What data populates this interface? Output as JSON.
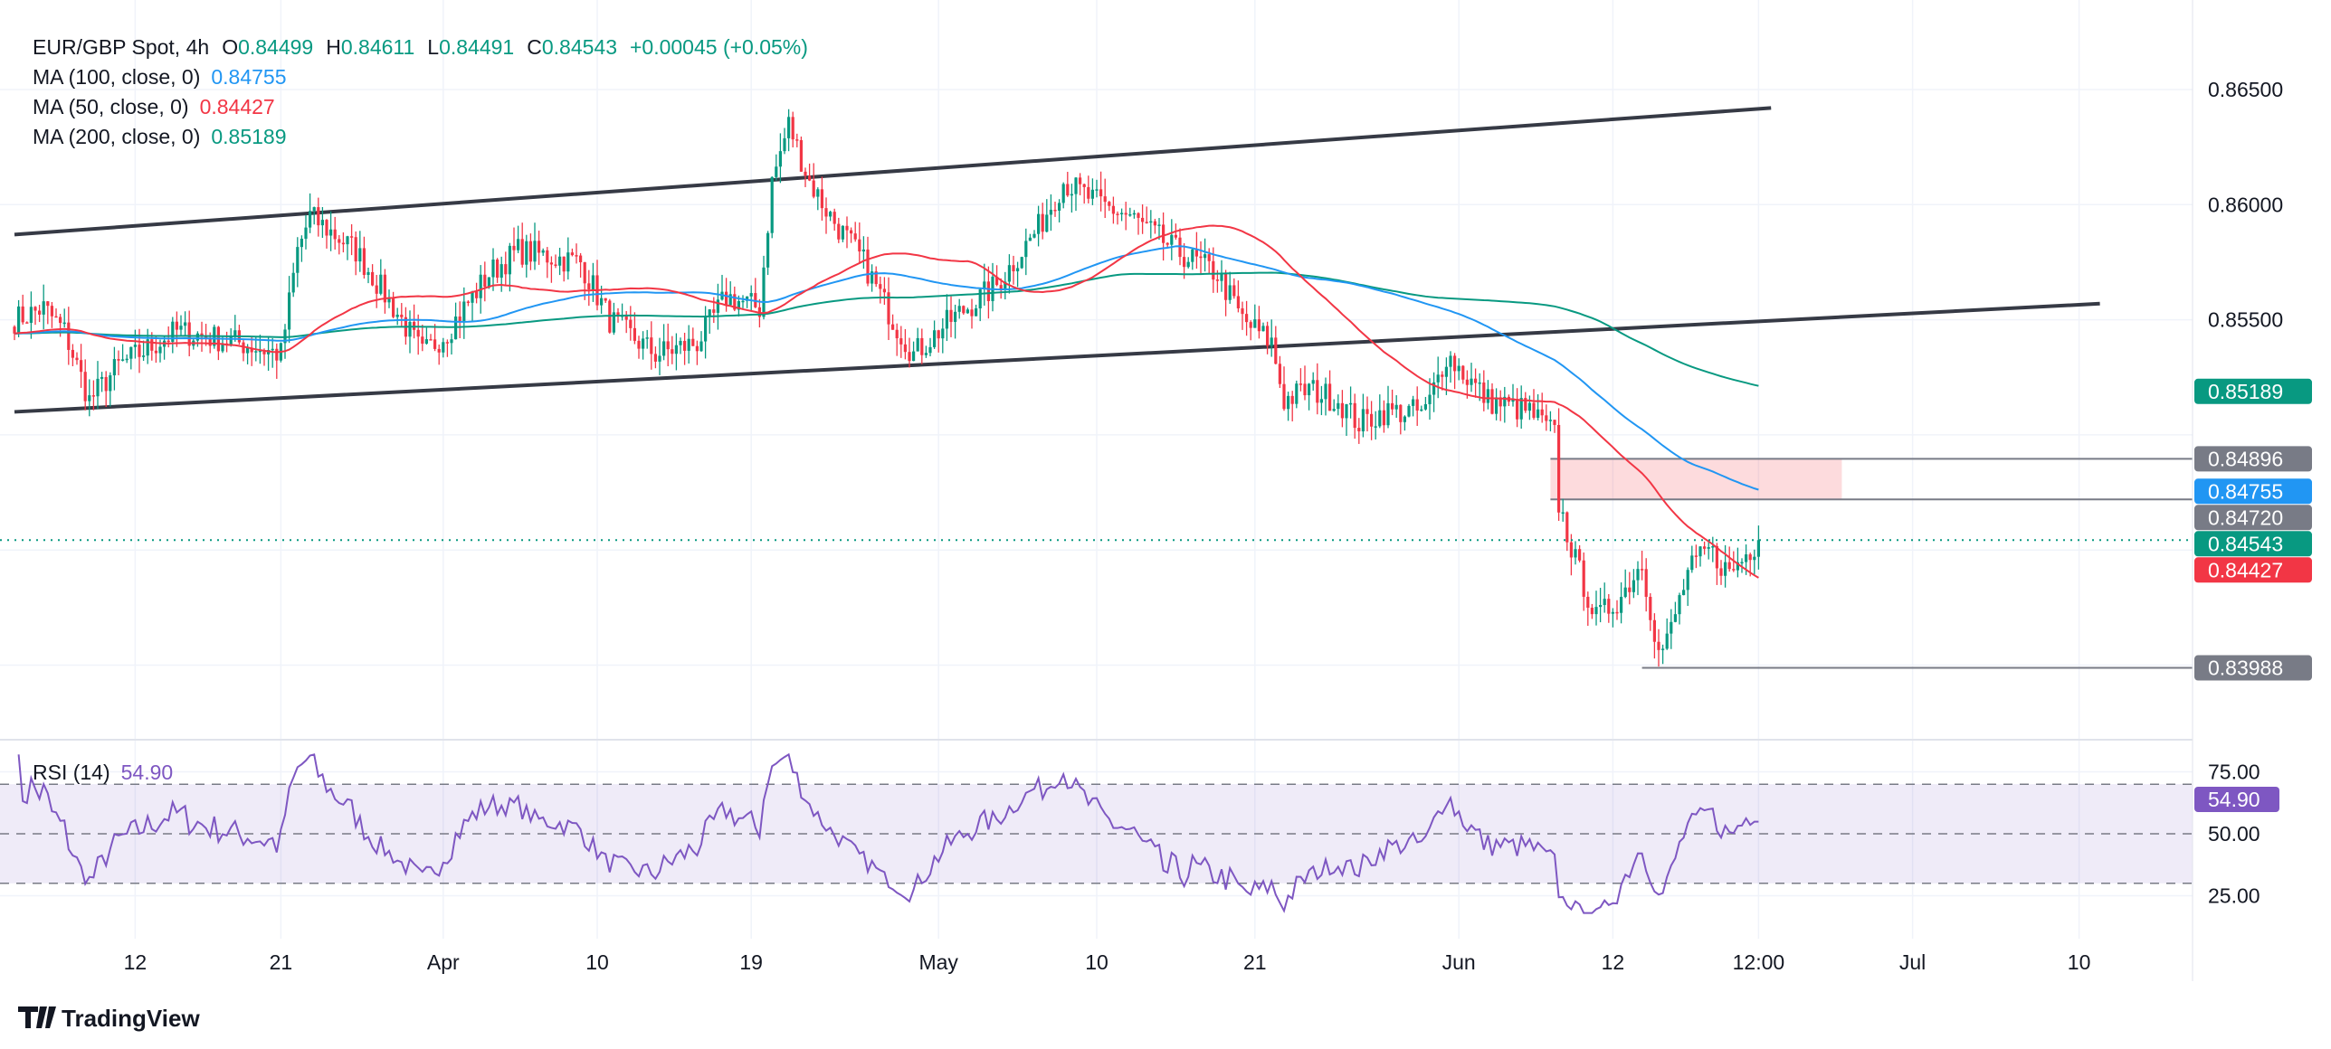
{
  "legend": {
    "symbol": "EUR/GBP Spot, 4h",
    "o_label": "O",
    "o": "0.84499",
    "h_label": "H",
    "h": "0.84611",
    "l_label": "L",
    "l": "0.84491",
    "c_label": "C",
    "c": "0.84543",
    "change": "+0.00045 (+0.05%)",
    "ma100_label": "MA (100, close, 0)",
    "ma100": "0.84755",
    "ma50_label": "MA (50, close, 0)",
    "ma50": "0.84427",
    "ma200_label": "MA (200, close, 0)",
    "ma200": "0.85189",
    "rsi_label": "RSI (14)",
    "rsi": "54.90"
  },
  "colors": {
    "up": "#089981",
    "down": "#f23645",
    "ma50": "#f23645",
    "ma100": "#2196f3",
    "ma200": "#089981",
    "rsi": "#7e57c2",
    "level": "#787b86",
    "zone": "#f8d7da"
  },
  "price_axis": [
    "0.86500",
    "0.86000",
    "0.85500"
  ],
  "price_badges": [
    {
      "value": "0.85189",
      "color": "#089981"
    },
    {
      "value": "0.84896",
      "color": "#787b86"
    },
    {
      "value": "0.84755",
      "color": "#2196f3"
    },
    {
      "value": "0.84720",
      "color": "#787b86"
    },
    {
      "value": "0.84543",
      "color": "#089981"
    },
    {
      "value": "0.84427",
      "color": "#f23645"
    },
    {
      "value": "0.83988",
      "color": "#787b86"
    }
  ],
  "rsi_axis": [
    "75.00",
    "50.00",
    "25.00"
  ],
  "rsi_badge": "54.90",
  "time_axis": [
    {
      "label": "12",
      "bar": 29
    },
    {
      "label": "21",
      "bar": 64
    },
    {
      "label": "Apr",
      "bar": 103
    },
    {
      "label": "10",
      "bar": 140
    },
    {
      "label": "19",
      "bar": 177
    },
    {
      "label": "May",
      "bar": 222
    },
    {
      "label": "10",
      "bar": 260
    },
    {
      "label": "21",
      "bar": 298
    },
    {
      "label": "Jun",
      "bar": 347
    },
    {
      "label": "12",
      "bar": 384
    },
    {
      "label": "12:00",
      "bar": 419
    },
    {
      "label": "Jul",
      "bar": 456
    },
    {
      "label": "10",
      "bar": 496
    }
  ],
  "branding": "TradingView",
  "chart_data": {
    "type": "candlestick",
    "title": "EUR/GBP Spot, 4h",
    "ylim": [
      0.837,
      0.867
    ],
    "rsi_ylim": [
      15,
      85
    ],
    "rsi_levels": [
      70,
      50,
      30
    ],
    "last_close": 0.84543,
    "approx_close_path": [
      [
        0,
        0.855
      ],
      [
        7,
        0.8555
      ],
      [
        12,
        0.8545
      ],
      [
        18,
        0.8515
      ],
      [
        25,
        0.853
      ],
      [
        39,
        0.8545
      ],
      [
        54,
        0.854
      ],
      [
        64,
        0.8535
      ],
      [
        68,
        0.858
      ],
      [
        71,
        0.8595
      ],
      [
        82,
        0.858
      ],
      [
        93,
        0.855
      ],
      [
        98,
        0.8535
      ],
      [
        104,
        0.8545
      ],
      [
        114,
        0.857
      ],
      [
        121,
        0.858
      ],
      [
        136,
        0.8575
      ],
      [
        143,
        0.855
      ],
      [
        154,
        0.8535
      ],
      [
        164,
        0.854
      ],
      [
        171,
        0.856
      ],
      [
        179,
        0.8555
      ],
      [
        182,
        0.861
      ],
      [
        186,
        0.8635
      ],
      [
        191,
        0.861
      ],
      [
        196,
        0.8595
      ],
      [
        204,
        0.8575
      ],
      [
        211,
        0.855
      ],
      [
        216,
        0.8535
      ],
      [
        225,
        0.855
      ],
      [
        236,
        0.8565
      ],
      [
        246,
        0.859
      ],
      [
        252,
        0.861
      ],
      [
        261,
        0.86
      ],
      [
        268,
        0.8595
      ],
      [
        279,
        0.858
      ],
      [
        289,
        0.857
      ],
      [
        295,
        0.855
      ],
      [
        302,
        0.854
      ],
      [
        305,
        0.8515
      ],
      [
        311,
        0.852
      ],
      [
        318,
        0.8515
      ],
      [
        323,
        0.8505
      ],
      [
        329,
        0.851
      ],
      [
        339,
        0.851
      ],
      [
        344,
        0.8535
      ],
      [
        354,
        0.8515
      ],
      [
        364,
        0.851
      ],
      [
        370,
        0.85
      ],
      [
        371,
        0.847
      ],
      [
        375,
        0.8445
      ],
      [
        380,
        0.842
      ],
      [
        386,
        0.843
      ],
      [
        391,
        0.8445
      ],
      [
        395,
        0.8405
      ],
      [
        397,
        0.841
      ],
      [
        402,
        0.844
      ],
      [
        407,
        0.845
      ],
      [
        412,
        0.844
      ],
      [
        419,
        0.84543
      ]
    ],
    "trendlines": [
      {
        "name": "channel-upper",
        "from": [
          0,
          0.8587
        ],
        "to": [
          422,
          0.8642
        ]
      },
      {
        "name": "channel-lower",
        "from": [
          0,
          0.851
        ],
        "to": [
          501,
          0.8557
        ]
      }
    ],
    "levels": [
      {
        "name": "resistance-high",
        "price": 0.84896,
        "from": 369,
        "to": 439
      },
      {
        "name": "resistance-low",
        "price": 0.8472,
        "from": 369,
        "to": 439
      },
      {
        "name": "support",
        "price": 0.83988,
        "from": 391,
        "to": "axis"
      }
    ],
    "resistance_zone": {
      "top": 0.84896,
      "bottom": 0.8472,
      "from": 369,
      "to": 439
    },
    "moving_averages": [
      {
        "name": "MA 50",
        "period": 50
      },
      {
        "name": "MA 100",
        "period": 100
      },
      {
        "name": "MA 200",
        "period": 200
      }
    ],
    "rsi_period": 14
  }
}
